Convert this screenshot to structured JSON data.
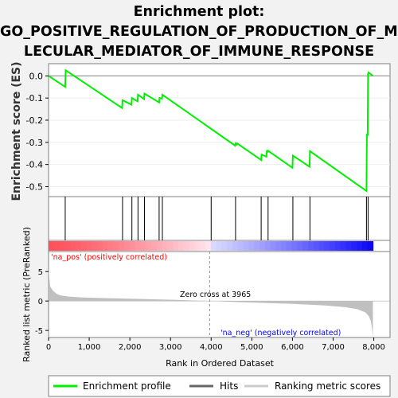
{
  "title_lines": [
    "Enrichment plot:",
    "GO_POSITIVE_REGULATION_OF_PRODUCTION_OF_MO",
    "LECULAR_MEDIATOR_OF_IMMUNE_RESPONSE"
  ],
  "colors": {
    "es_line": "#00ee00",
    "hits": "#000000",
    "metric_fill": "#c0c0c0",
    "pos_text": "#ff0000",
    "neg_text": "#0000ff"
  },
  "chart_data": {
    "type": "line",
    "title": "Enrichment plot: GO_POSITIVE_REGULATION_OF_PRODUCTION_OF_MOLECULAR_MEDIATOR_OF_IMMUNE_RESPONSE",
    "xlabel": "Rank in Ordered Dataset",
    "xlim": [
      0,
      8400
    ],
    "x_ticks": [
      0,
      1000,
      2000,
      3000,
      4000,
      5000,
      6000,
      7000,
      8000
    ],
    "x_tick_labels": [
      "0",
      "1,000",
      "2,000",
      "3,000",
      "4,000",
      "5,000",
      "6,000",
      "7,000",
      "8,000"
    ],
    "es_panel": {
      "ylabel": "Enrichment score (ES)",
      "ylim": [
        -0.545,
        0.055
      ],
      "y_ticks": [
        0.0,
        -0.1,
        -0.2,
        -0.3,
        -0.4,
        -0.5
      ],
      "y_tick_labels": [
        "0.0",
        "-0.1",
        "-0.2",
        "-0.3",
        "-0.4",
        "-0.5"
      ],
      "x": [
        0,
        410,
        420,
        1810,
        1820,
        2040,
        2050,
        2190,
        2200,
        2350,
        2360,
        2720,
        2730,
        2790,
        2800,
        4590,
        4600,
        4630,
        4640,
        5230,
        5240,
        5360,
        5370,
        5390,
        5400,
        6000,
        6010,
        6420,
        6430,
        7820,
        7830,
        7840,
        7850,
        7860,
        7870,
        7980
      ],
      "y": [
        0.0,
        -0.05,
        0.025,
        -0.145,
        -0.11,
        -0.13,
        -0.1,
        -0.115,
        -0.085,
        -0.105,
        -0.08,
        -0.12,
        -0.1,
        -0.103,
        -0.085,
        -0.315,
        -0.305,
        -0.31,
        -0.305,
        -0.38,
        -0.355,
        -0.365,
        -0.34,
        -0.342,
        -0.338,
        -0.415,
        -0.36,
        -0.41,
        -0.34,
        -0.52,
        -0.265,
        -0.265,
        -0.27,
        0.01,
        0.015,
        0.0
      ]
    },
    "hits": [
      410,
      1820,
      2050,
      2200,
      2360,
      2720,
      2800,
      4000,
      4600,
      5230,
      5400,
      6010,
      6430,
      7820,
      7860
    ],
    "metric_panel": {
      "ylabel": "Ranked list metric (PreRanked)",
      "ylim": [
        -6.2,
        8.4
      ],
      "y_ticks": [
        5,
        0,
        -5
      ],
      "y_tick_labels": [
        "5",
        "0",
        "-5"
      ],
      "x": [
        0,
        40,
        100,
        200,
        300,
        500,
        800,
        1200,
        2000,
        3000,
        3965,
        4500,
        5200,
        6000,
        6800,
        7300,
        7600,
        7800,
        7880,
        7930,
        7960,
        7980
      ],
      "y": [
        5.5,
        2.5,
        1.8,
        1.2,
        0.95,
        0.75,
        0.62,
        0.52,
        0.4,
        0.22,
        0.0,
        -0.15,
        -0.3,
        -0.5,
        -0.75,
        -1.05,
        -1.4,
        -1.95,
        -2.6,
        -3.5,
        -4.8,
        -6.2
      ]
    },
    "zero_cross": 3965,
    "zero_cross_label": "Zero cross at 3965",
    "pos_label": "'na_pos' (positively correlated)",
    "neg_label": "'na_neg' (negatively correlated)",
    "legend": {
      "position": "bottom",
      "items": [
        "Enrichment profile",
        "Hits",
        "Ranking metric scores"
      ]
    }
  }
}
